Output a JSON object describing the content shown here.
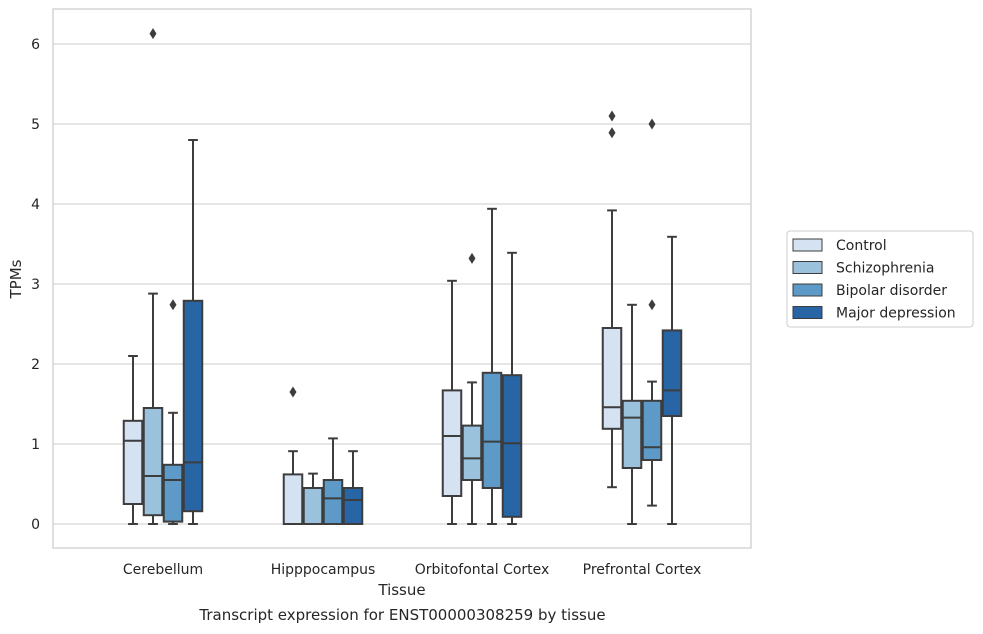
{
  "caption": "Transcript expression for ENST00000308259 by tissue",
  "chart_data": {
    "type": "box",
    "xlabel": "Tissue",
    "ylabel": "TPMs",
    "ylim": [
      -0.3,
      6.45
    ],
    "yticks": [
      0,
      1,
      2,
      3,
      4,
      5,
      6
    ],
    "grid": "horizontal",
    "legend_position": "right",
    "categories": [
      "Cerebellum",
      "Hipppocampus",
      "Orbitofontal Cortex",
      "Prefrontal Cortex"
    ],
    "series": [
      {
        "name": "Control",
        "color": "#d4e2f2",
        "boxes": [
          {
            "q1": 0.25,
            "median": 1.04,
            "q3": 1.29,
            "whisker_low": 0.0,
            "whisker_high": 2.1,
            "outliers": []
          },
          {
            "q1": 0.0,
            "median": 0.0,
            "q3": 0.62,
            "whisker_low": 0.0,
            "whisker_high": 0.91,
            "outliers": [
              1.65
            ]
          },
          {
            "q1": 0.35,
            "median": 1.1,
            "q3": 1.67,
            "whisker_low": 0.0,
            "whisker_high": 3.04,
            "outliers": []
          },
          {
            "q1": 1.19,
            "median": 1.46,
            "q3": 2.45,
            "whisker_low": 0.46,
            "whisker_high": 3.92,
            "outliers": [
              4.89,
              5.1
            ]
          }
        ]
      },
      {
        "name": "Schizophrenia",
        "color": "#9ac2dc",
        "boxes": [
          {
            "q1": 0.11,
            "median": 0.6,
            "q3": 1.45,
            "whisker_low": 0.0,
            "whisker_high": 2.88,
            "outliers": [
              6.13
            ]
          },
          {
            "q1": 0.0,
            "median": 0.0,
            "q3": 0.45,
            "whisker_low": 0.0,
            "whisker_high": 0.63,
            "outliers": []
          },
          {
            "q1": 0.55,
            "median": 0.82,
            "q3": 1.23,
            "whisker_low": 0.0,
            "whisker_high": 1.77,
            "outliers": [
              3.32
            ]
          },
          {
            "q1": 0.7,
            "median": 1.33,
            "q3": 1.54,
            "whisker_low": 0.0,
            "whisker_high": 2.74,
            "outliers": []
          }
        ]
      },
      {
        "name": "Bipolar disorder",
        "color": "#5d9ac7",
        "boxes": [
          {
            "q1": 0.03,
            "median": 0.55,
            "q3": 0.74,
            "whisker_low": 0.0,
            "whisker_high": 1.39,
            "outliers": [
              2.74
            ]
          },
          {
            "q1": 0.0,
            "median": 0.32,
            "q3": 0.55,
            "whisker_low": 0.0,
            "whisker_high": 1.07,
            "outliers": []
          },
          {
            "q1": 0.45,
            "median": 1.03,
            "q3": 1.89,
            "whisker_low": 0.0,
            "whisker_high": 3.94,
            "outliers": []
          },
          {
            "q1": 0.8,
            "median": 0.96,
            "q3": 1.54,
            "whisker_low": 0.23,
            "whisker_high": 1.78,
            "outliers": [
              2.74,
              5.0
            ]
          }
        ]
      },
      {
        "name": "Major depression",
        "color": "#2765a5",
        "boxes": [
          {
            "q1": 0.16,
            "median": 0.77,
            "q3": 2.79,
            "whisker_low": 0.0,
            "whisker_high": 4.8,
            "outliers": []
          },
          {
            "q1": 0.0,
            "median": 0.3,
            "q3": 0.45,
            "whisker_low": 0.0,
            "whisker_high": 0.91,
            "outliers": []
          },
          {
            "q1": 0.09,
            "median": 1.01,
            "q3": 1.86,
            "whisker_low": 0.0,
            "whisker_high": 3.39,
            "outliers": []
          },
          {
            "q1": 1.35,
            "median": 1.67,
            "q3": 2.42,
            "whisker_low": 0.0,
            "whisker_high": 3.59,
            "outliers": []
          }
        ]
      }
    ]
  }
}
